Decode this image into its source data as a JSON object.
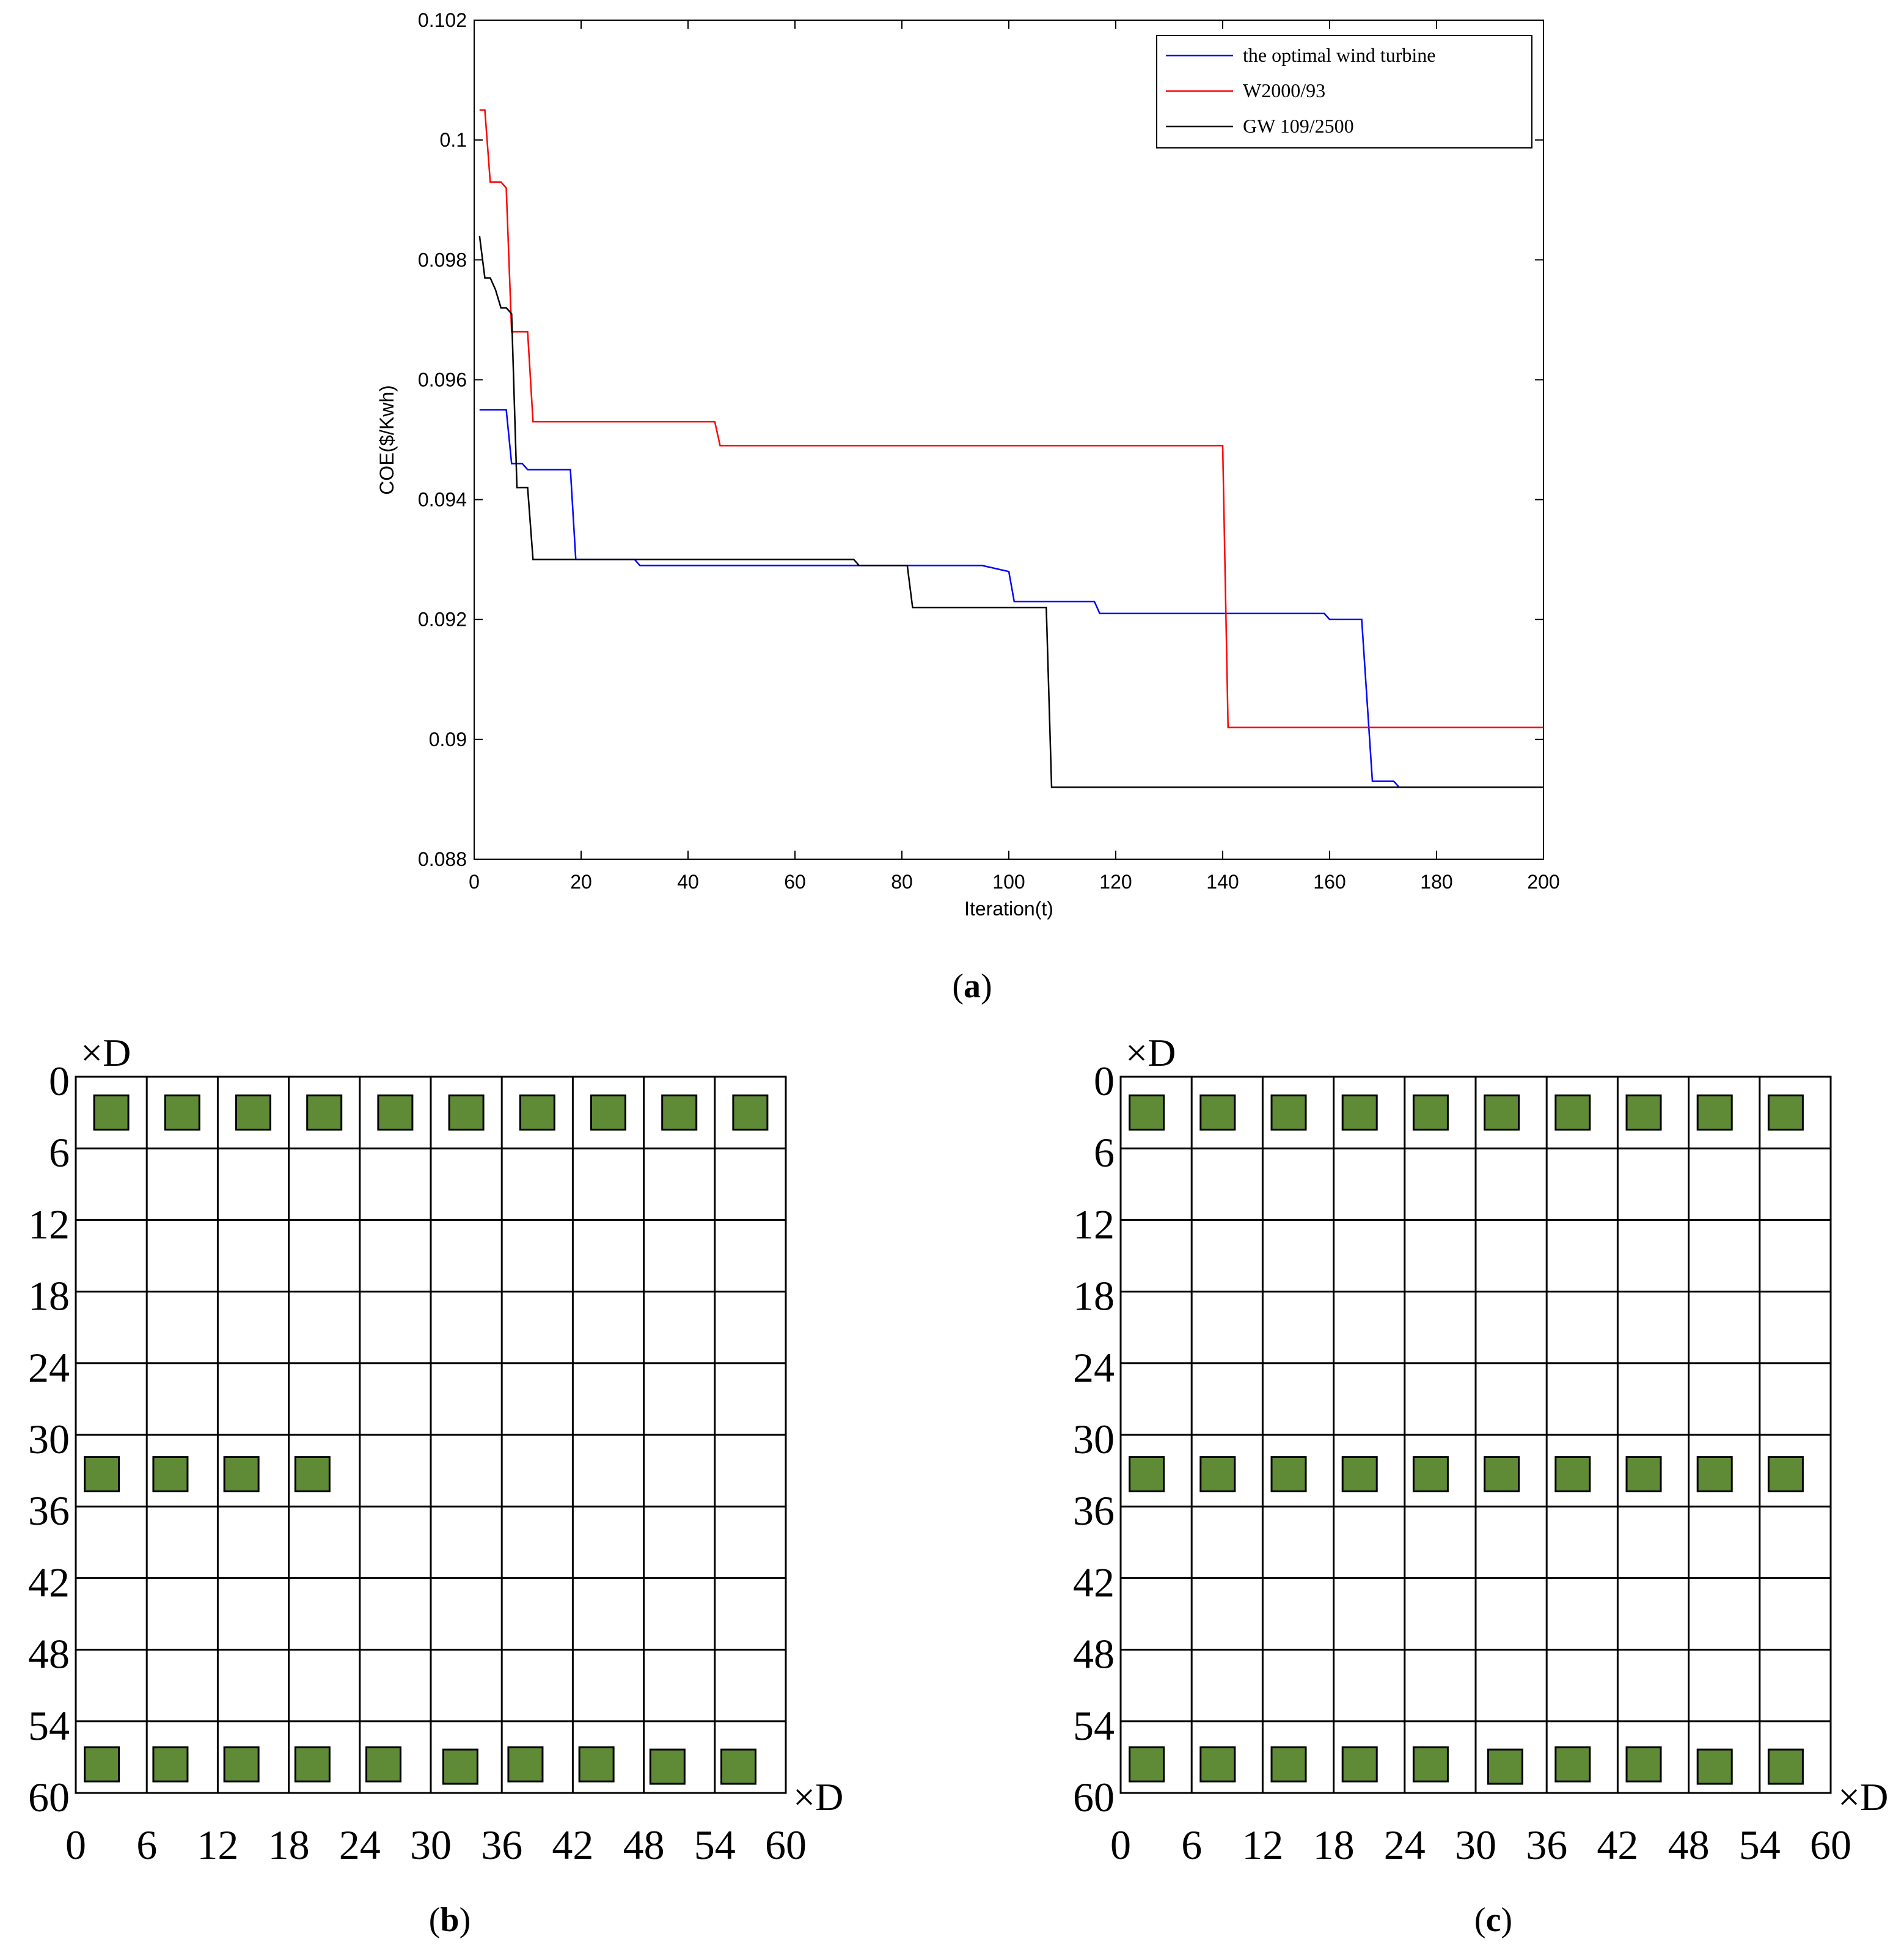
{
  "chart_data": [
    {
      "panel": "(a)",
      "type": "line",
      "title": "",
      "xlabel": "Iteration(t)",
      "ylabel": "COE($/Kwh)",
      "xlim": [
        0,
        200
      ],
      "ylim": [
        0.088,
        0.102
      ],
      "xticks": [
        "0",
        "20",
        "40",
        "60",
        "80",
        "100",
        "120",
        "140",
        "160",
        "180",
        "200"
      ],
      "yticks": [
        "0.088",
        "0.09",
        "0.092",
        "0.094",
        "0.096",
        "0.098",
        "0.1",
        "0.102"
      ],
      "xtick_values": [
        0,
        20,
        40,
        60,
        80,
        100,
        120,
        140,
        160,
        180,
        200
      ],
      "ytick_values": [
        0.088,
        0.09,
        0.092,
        0.094,
        0.096,
        0.098,
        0.1,
        0.102
      ],
      "legend_position": "top-right",
      "series": [
        {
          "name": "the optimal wind turbine",
          "color": "#0000ff",
          "points": [
            [
              1,
              0.0955
            ],
            [
              6,
              0.0955
            ],
            [
              7,
              0.0946
            ],
            [
              9,
              0.0946
            ],
            [
              10,
              0.0945
            ],
            [
              18,
              0.0945
            ],
            [
              19,
              0.093
            ],
            [
              30,
              0.093
            ],
            [
              31,
              0.0929
            ],
            [
              81,
              0.0929
            ],
            [
              95,
              0.0929
            ],
            [
              100,
              0.0928
            ],
            [
              101,
              0.0923
            ],
            [
              116,
              0.0923
            ],
            [
              117,
              0.0921
            ],
            [
              159,
              0.0921
            ],
            [
              160,
              0.092
            ],
            [
              166,
              0.092
            ],
            [
              168,
              0.0893
            ],
            [
              172,
              0.0893
            ],
            [
              173,
              0.0892
            ],
            [
              200,
              0.0892
            ]
          ]
        },
        {
          "name": "W2000/93",
          "color": "#ff0000",
          "points": [
            [
              1,
              0.1005
            ],
            [
              2,
              0.1005
            ],
            [
              3,
              0.0993
            ],
            [
              5,
              0.0993
            ],
            [
              6,
              0.0992
            ],
            [
              7,
              0.0968
            ],
            [
              10,
              0.0968
            ],
            [
              11,
              0.0953
            ],
            [
              45,
              0.0953
            ],
            [
              46,
              0.0949
            ],
            [
              140,
              0.0949
            ],
            [
              141,
              0.0902
            ],
            [
              200,
              0.0902
            ]
          ]
        },
        {
          "name": "GW 109/2500",
          "color": "#000000",
          "points": [
            [
              1,
              0.0984
            ],
            [
              2,
              0.0977
            ],
            [
              3,
              0.0977
            ],
            [
              4,
              0.0975
            ],
            [
              5,
              0.0972
            ],
            [
              6,
              0.0972
            ],
            [
              7,
              0.0971
            ],
            [
              8,
              0.0942
            ],
            [
              10,
              0.0942
            ],
            [
              11,
              0.093
            ],
            [
              71,
              0.093
            ],
            [
              72,
              0.0929
            ],
            [
              81,
              0.0929
            ],
            [
              82,
              0.0922
            ],
            [
              107,
              0.0922
            ],
            [
              108,
              0.0892
            ],
            [
              200,
              0.0892
            ]
          ]
        }
      ]
    },
    {
      "panel": "(b)",
      "type": "layout-grid",
      "xlabel": "×D",
      "ylabel": "×D",
      "grid_range": [
        0,
        60
      ],
      "grid_step": 6,
      "xticks": [
        "0",
        "6",
        "12",
        "18",
        "24",
        "30",
        "36",
        "42",
        "48",
        "54",
        "60"
      ],
      "yticks": [
        "0",
        "6",
        "12",
        "18",
        "24",
        "30",
        "36",
        "42",
        "48",
        "54",
        "60"
      ],
      "turbine_color": "#5f8a36",
      "turbines": [
        [
          3,
          3
        ],
        [
          9,
          3
        ],
        [
          15,
          3
        ],
        [
          21,
          3
        ],
        [
          27,
          3
        ],
        [
          33,
          3
        ],
        [
          39,
          3
        ],
        [
          45,
          3
        ],
        [
          51,
          3
        ],
        [
          57,
          3
        ],
        [
          2.2,
          33.3
        ],
        [
          8,
          33.3
        ],
        [
          14,
          33.3
        ],
        [
          20,
          33.3
        ],
        [
          2.2,
          57.6
        ],
        [
          8,
          57.6
        ],
        [
          14,
          57.6
        ],
        [
          20,
          57.6
        ],
        [
          26,
          57.6
        ],
        [
          32.5,
          57.8
        ],
        [
          38,
          57.6
        ],
        [
          44,
          57.6
        ],
        [
          50,
          57.8
        ],
        [
          56,
          57.8
        ]
      ]
    },
    {
      "panel": "(c)",
      "type": "layout-grid",
      "xlabel": "×D",
      "ylabel": "×D",
      "grid_range": [
        0,
        60
      ],
      "grid_step": 6,
      "xticks": [
        "0",
        "6",
        "12",
        "18",
        "24",
        "30",
        "36",
        "42",
        "48",
        "54",
        "60"
      ],
      "yticks": [
        "0",
        "6",
        "12",
        "18",
        "24",
        "30",
        "36",
        "42",
        "48",
        "54",
        "60"
      ],
      "turbine_color": "#5f8a36",
      "turbines": [
        [
          2.2,
          3
        ],
        [
          8.2,
          3
        ],
        [
          14.2,
          3
        ],
        [
          20.2,
          3
        ],
        [
          26.2,
          3
        ],
        [
          32.2,
          3
        ],
        [
          38.2,
          3
        ],
        [
          44.2,
          3
        ],
        [
          50.2,
          3
        ],
        [
          56.2,
          3
        ],
        [
          2.2,
          33.3
        ],
        [
          8.2,
          33.3
        ],
        [
          14.2,
          33.3
        ],
        [
          20.2,
          33.3
        ],
        [
          26.2,
          33.3
        ],
        [
          32.2,
          33.3
        ],
        [
          38.2,
          33.3
        ],
        [
          44.2,
          33.3
        ],
        [
          50.2,
          33.3
        ],
        [
          56.2,
          33.3
        ],
        [
          2.2,
          57.6
        ],
        [
          8.2,
          57.6
        ],
        [
          14.2,
          57.6
        ],
        [
          20.2,
          57.6
        ],
        [
          26.2,
          57.6
        ],
        [
          32.5,
          57.8
        ],
        [
          38.2,
          57.6
        ],
        [
          44.2,
          57.6
        ],
        [
          50.2,
          57.8
        ],
        [
          56.2,
          57.8
        ]
      ]
    }
  ],
  "captions": {
    "a": "a",
    "b": "b",
    "c": "c"
  }
}
